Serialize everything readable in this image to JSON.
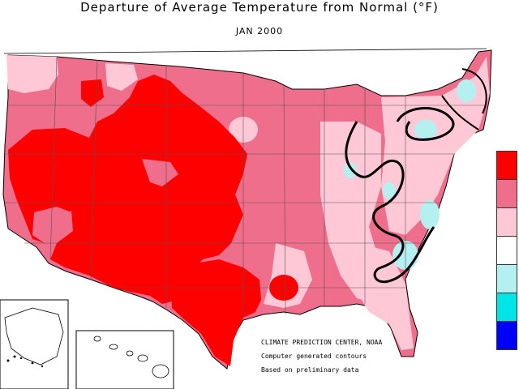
{
  "title": "Departure of Average Temperature from Normal (°F)",
  "subtitle": "JAN 2000",
  "credits": {
    "line1": "CLIMATE PREDICTION CENTER, NOAA",
    "line2": "Computer generated contours",
    "line3": "Based on preliminary data"
  },
  "colors": {
    "much_above": "#ff0000",
    "above": "#ee6e8c",
    "slightly_above": "#ffc8d7",
    "near_normal": "#ffffff",
    "slightly_below": "#b4f0f0",
    "below": "#00e6e6",
    "much_below": "#0000ff"
  },
  "legend": [
    {
      "color": "#ff0000"
    },
    {
      "color": "#ee6e8c"
    },
    {
      "color": "#ffc8d7"
    },
    {
      "color": "#ffffff"
    },
    {
      "color": "#b4f0f0"
    },
    {
      "color": "#00e6e6"
    },
    {
      "color": "#0000ff"
    }
  ]
}
